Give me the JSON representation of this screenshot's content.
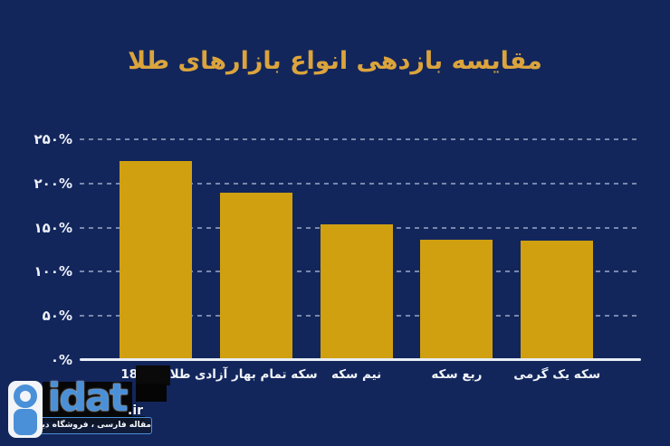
{
  "title": {
    "text": "مقایسه بازدهی انواع بازارهای طلا"
  },
  "chart_data": {
    "type": "bar",
    "title": "مقایسه بازدهی انواع بازارهای طلا",
    "categories": [
      "طلا گرم 18",
      "سکه تمام بهار آزادی",
      "نیم سکه",
      "ربع سکه",
      "سکه یک گرمی"
    ],
    "values": [
      225,
      190,
      154,
      136,
      135
    ],
    "value_unit": "%",
    "ylim": [
      0,
      250
    ],
    "yticks": [
      0,
      50,
      100,
      150,
      200,
      250
    ],
    "ytick_labels": [
      "۰%",
      "۵۰%",
      "۱۰۰%",
      "۱۵۰%",
      "۲۰۰%",
      "۲۵۰%"
    ],
    "xlabel": "",
    "ylabel": "",
    "grid": "horizontal-dashed",
    "legend": "none",
    "bar_color": "#d0a011",
    "title_color": "#dba43c",
    "background_color": "#12265c",
    "text_color": "#eef1f8"
  },
  "watermark": {
    "brand": "idat",
    "tld": ".ir",
    "tagline": "مقاله فارسی ، فروشگاه دیجیتال"
  }
}
